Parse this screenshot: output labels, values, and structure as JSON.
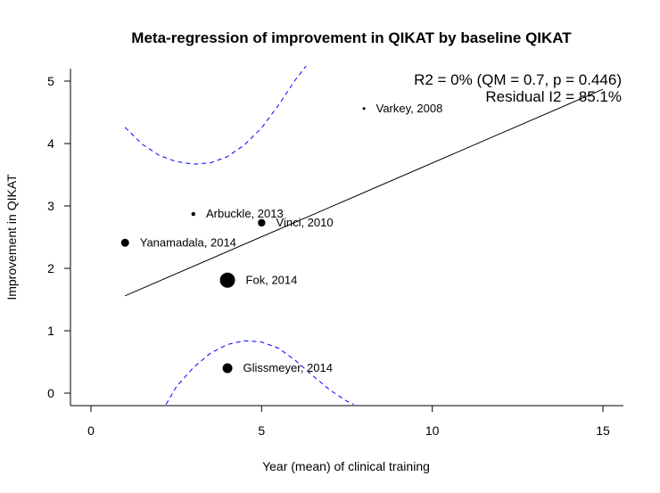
{
  "chart_data": {
    "type": "scatter",
    "title": "Meta-regression of improvement in QIKAT by baseline QIKAT",
    "xlabel": "Year (mean) of clinical training",
    "ylabel": "Improvement in QIKAT",
    "xlim": [
      -0.6,
      15.6
    ],
    "ylim": [
      -0.2,
      5.2
    ],
    "xticks": [
      0,
      5,
      10,
      15
    ],
    "yticks": [
      0,
      1,
      2,
      3,
      4,
      5
    ],
    "grid": false,
    "annotation": {
      "line1": "R2 = 0% (QM = 0.7, p = 0.446)",
      "line2": "Residual I2 = 85.1%"
    },
    "points": [
      {
        "label": "Varkey, 2008",
        "x": 8,
        "y": 4.56,
        "weight": 1.5
      },
      {
        "label": "Arbuckle, 2013",
        "x": 3,
        "y": 2.87,
        "weight": 2.2
      },
      {
        "label": "Vinci, 2010",
        "x": 5,
        "y": 2.73,
        "weight": 4.2
      },
      {
        "label": "Yanamadala, 2014",
        "x": 1,
        "y": 2.41,
        "weight": 4.5
      },
      {
        "label": "Fok, 2014",
        "x": 4,
        "y": 1.81,
        "weight": 8.5
      },
      {
        "label": "Glissmeyer, 2014",
        "x": 4,
        "y": 0.4,
        "weight": 5.5
      }
    ],
    "regression_line": {
      "x": [
        1,
        15
      ],
      "y": [
        1.56,
        4.87
      ]
    },
    "ci_upper": {
      "x": [
        1.0,
        1.5,
        2.0,
        2.5,
        3.0,
        3.5,
        4.0,
        4.5,
        5.0,
        5.5,
        6.0,
        6.3
      ],
      "y": [
        4.26,
        3.99,
        3.81,
        3.71,
        3.67,
        3.69,
        3.79,
        3.98,
        4.25,
        4.62,
        5.03,
        5.24
      ]
    },
    "ci_lower": {
      "x": [
        2.2,
        2.5,
        3.0,
        3.5,
        4.0,
        4.5,
        5.0,
        5.5,
        6.0,
        6.5,
        7.0,
        7.5,
        7.7
      ],
      "y": [
        -0.18,
        0.1,
        0.41,
        0.64,
        0.78,
        0.84,
        0.82,
        0.72,
        0.52,
        0.28,
        0.05,
        -0.13,
        -0.18
      ]
    },
    "colors": {
      "points": "#000000",
      "regression": "#000000",
      "ci": "#0000ff"
    }
  }
}
